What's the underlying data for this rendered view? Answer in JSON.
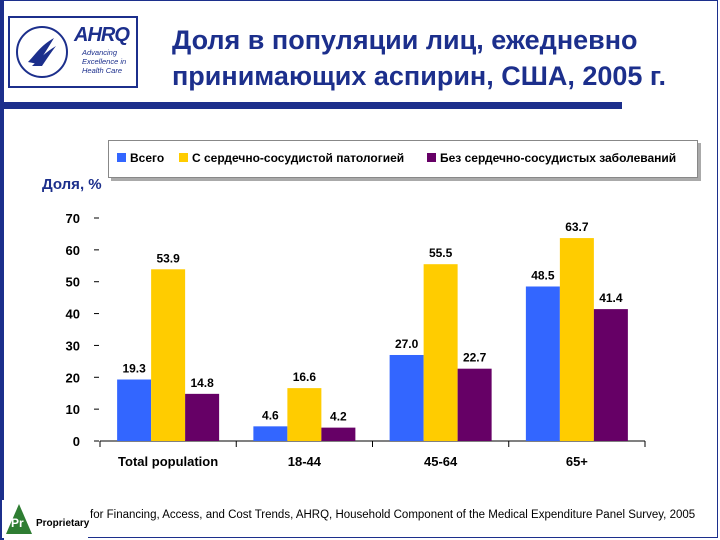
{
  "header": {
    "title": "Доля в популяции лиц, ежедневно принимающих аспирин, США, 2005 г.",
    "logo_text": "AHRQ",
    "logo_tagline": "Advancing Excellence in Health Care"
  },
  "footer": {
    "source": "for Financing, Access, and Cost Trends, AHRQ, Household Component of the Medical Expenditure Panel Survey, 2005",
    "badge_mark": "Pr",
    "badge_label": "Proprietary"
  },
  "colors": {
    "title": "#1c2f8c",
    "series": [
      "#3366ff",
      "#ffcc00",
      "#660066"
    ]
  },
  "chart_data": {
    "type": "bar",
    "ylabel": "Доля, %",
    "xlabel": "",
    "ylim": [
      0,
      70
    ],
    "yticks": [
      0,
      10,
      20,
      30,
      40,
      50,
      60,
      70
    ],
    "legend_position": "top",
    "categories": [
      "Total population",
      "18-44",
      "45-64",
      "65+"
    ],
    "series": [
      {
        "name": "Всего",
        "values": [
          19.3,
          4.6,
          27.0,
          48.5
        ],
        "labels": [
          "19.3",
          "4.6",
          "27.0",
          "48.5"
        ]
      },
      {
        "name": "С сердечно-сосудистой патологией",
        "values": [
          53.9,
          16.6,
          55.5,
          63.7
        ],
        "labels": [
          "53.9",
          "16.6",
          "55.5",
          "63.7"
        ]
      },
      {
        "name": "Без сердечно-сосудистых заболеваний",
        "values": [
          14.8,
          4.2,
          22.7,
          41.4
        ],
        "labels": [
          "14.8",
          "4.2",
          "22.7",
          "41.4"
        ]
      }
    ]
  }
}
